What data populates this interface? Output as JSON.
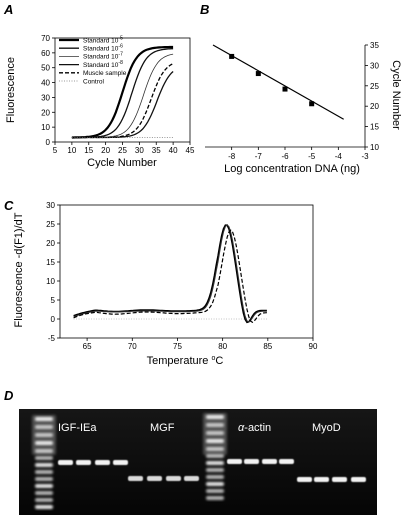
{
  "figure": {
    "panels": [
      "A",
      "B",
      "C",
      "D"
    ]
  },
  "chart_data": [
    {
      "panel": "A",
      "type": "line",
      "xlabel": "Cycle Number",
      "ylabel": "Fluorescence",
      "xlim": [
        5,
        45
      ],
      "ylim": [
        0,
        70
      ],
      "xticks": [
        5,
        10,
        15,
        20,
        25,
        30,
        35,
        40,
        45
      ],
      "yticks": [
        0,
        10,
        20,
        30,
        40,
        50,
        60,
        70
      ],
      "legend_position": "top-left",
      "series": [
        {
          "name": "Standard 10",
          "exp": "-5",
          "style": "thick-solid",
          "midpoint": 25.0,
          "plateau": 64
        },
        {
          "name": "Standard 10",
          "exp": "-6",
          "style": "solid",
          "midpoint": 27.8,
          "plateau": 63
        },
        {
          "name": "Standard 10",
          "exp": "-7",
          "style": "thin-solid",
          "midpoint": 31.2,
          "plateau": 60
        },
        {
          "name": "Standard 10",
          "exp": "-8",
          "style": "solid",
          "midpoint": 35.2,
          "plateau": 52
        },
        {
          "name": "Muscle sample",
          "exp": "",
          "style": "dashed",
          "midpoint": 33.5,
          "plateau": 55
        },
        {
          "name": "Control",
          "exp": "",
          "style": "dotted",
          "midpoint": null,
          "plateau": 3
        }
      ],
      "baseline": 3
    },
    {
      "panel": "B",
      "type": "scatter",
      "xlabel": "Log concentration DNA (ng)",
      "ylabel": "Cycle Number",
      "xlim": [
        -9,
        -3
      ],
      "ylim": [
        10,
        35
      ],
      "xticks": [
        -8,
        -7,
        -6,
        -5,
        -4,
        -3
      ],
      "yticks": [
        10,
        15,
        20,
        25,
        30,
        35
      ],
      "points": [
        {
          "x": -8,
          "y": 32.2
        },
        {
          "x": -7,
          "y": 28.0
        },
        {
          "x": -6,
          "y": 24.2
        },
        {
          "x": -5,
          "y": 20.6
        }
      ],
      "fit_line": {
        "x": [
          -8.7,
          -3.8
        ],
        "y": [
          35.0,
          16.8
        ]
      }
    },
    {
      "panel": "C",
      "type": "line",
      "xlabel": "Temperature",
      "xlabel_unit": "C",
      "xlabel_super": "o",
      "ylabel": "Fluorescence -d(F1)/dT",
      "xlim": [
        62,
        90
      ],
      "ylim": [
        -5,
        30
      ],
      "xticks": [
        65,
        70,
        75,
        80,
        85,
        90
      ],
      "yticks": [
        -5,
        0,
        5,
        10,
        15,
        20,
        25,
        30
      ],
      "peak_temperature": 80.5,
      "peak_height": 24.8
    }
  ],
  "gel": {
    "labels": [
      "IGF-IEa",
      "MGF",
      "α-actin",
      "MyoD"
    ],
    "alpha_prefix": "α",
    "actin_suffix": "-actin"
  }
}
